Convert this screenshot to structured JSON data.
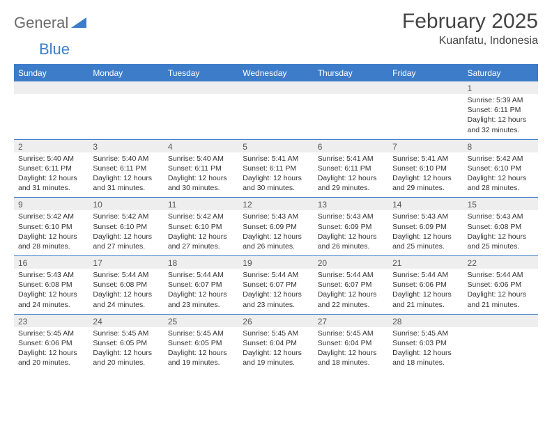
{
  "logo": {
    "word1": "General",
    "word2": "Blue"
  },
  "title": "February 2025",
  "location": "Kuanfatu, Indonesia",
  "header_bg": "#3d7cc9",
  "day_names": [
    "Sunday",
    "Monday",
    "Tuesday",
    "Wednesday",
    "Thursday",
    "Friday",
    "Saturday"
  ],
  "weeks": [
    [
      {
        "n": "",
        "sr": "",
        "ss": "",
        "dl": ""
      },
      {
        "n": "",
        "sr": "",
        "ss": "",
        "dl": ""
      },
      {
        "n": "",
        "sr": "",
        "ss": "",
        "dl": ""
      },
      {
        "n": "",
        "sr": "",
        "ss": "",
        "dl": ""
      },
      {
        "n": "",
        "sr": "",
        "ss": "",
        "dl": ""
      },
      {
        "n": "",
        "sr": "",
        "ss": "",
        "dl": ""
      },
      {
        "n": "1",
        "sr": "Sunrise: 5:39 AM",
        "ss": "Sunset: 6:11 PM",
        "dl": "Daylight: 12 hours and 32 minutes."
      }
    ],
    [
      {
        "n": "2",
        "sr": "Sunrise: 5:40 AM",
        "ss": "Sunset: 6:11 PM",
        "dl": "Daylight: 12 hours and 31 minutes."
      },
      {
        "n": "3",
        "sr": "Sunrise: 5:40 AM",
        "ss": "Sunset: 6:11 PM",
        "dl": "Daylight: 12 hours and 31 minutes."
      },
      {
        "n": "4",
        "sr": "Sunrise: 5:40 AM",
        "ss": "Sunset: 6:11 PM",
        "dl": "Daylight: 12 hours and 30 minutes."
      },
      {
        "n": "5",
        "sr": "Sunrise: 5:41 AM",
        "ss": "Sunset: 6:11 PM",
        "dl": "Daylight: 12 hours and 30 minutes."
      },
      {
        "n": "6",
        "sr": "Sunrise: 5:41 AM",
        "ss": "Sunset: 6:11 PM",
        "dl": "Daylight: 12 hours and 29 minutes."
      },
      {
        "n": "7",
        "sr": "Sunrise: 5:41 AM",
        "ss": "Sunset: 6:10 PM",
        "dl": "Daylight: 12 hours and 29 minutes."
      },
      {
        "n": "8",
        "sr": "Sunrise: 5:42 AM",
        "ss": "Sunset: 6:10 PM",
        "dl": "Daylight: 12 hours and 28 minutes."
      }
    ],
    [
      {
        "n": "9",
        "sr": "Sunrise: 5:42 AM",
        "ss": "Sunset: 6:10 PM",
        "dl": "Daylight: 12 hours and 28 minutes."
      },
      {
        "n": "10",
        "sr": "Sunrise: 5:42 AM",
        "ss": "Sunset: 6:10 PM",
        "dl": "Daylight: 12 hours and 27 minutes."
      },
      {
        "n": "11",
        "sr": "Sunrise: 5:42 AM",
        "ss": "Sunset: 6:10 PM",
        "dl": "Daylight: 12 hours and 27 minutes."
      },
      {
        "n": "12",
        "sr": "Sunrise: 5:43 AM",
        "ss": "Sunset: 6:09 PM",
        "dl": "Daylight: 12 hours and 26 minutes."
      },
      {
        "n": "13",
        "sr": "Sunrise: 5:43 AM",
        "ss": "Sunset: 6:09 PM",
        "dl": "Daylight: 12 hours and 26 minutes."
      },
      {
        "n": "14",
        "sr": "Sunrise: 5:43 AM",
        "ss": "Sunset: 6:09 PM",
        "dl": "Daylight: 12 hours and 25 minutes."
      },
      {
        "n": "15",
        "sr": "Sunrise: 5:43 AM",
        "ss": "Sunset: 6:08 PM",
        "dl": "Daylight: 12 hours and 25 minutes."
      }
    ],
    [
      {
        "n": "16",
        "sr": "Sunrise: 5:43 AM",
        "ss": "Sunset: 6:08 PM",
        "dl": "Daylight: 12 hours and 24 minutes."
      },
      {
        "n": "17",
        "sr": "Sunrise: 5:44 AM",
        "ss": "Sunset: 6:08 PM",
        "dl": "Daylight: 12 hours and 24 minutes."
      },
      {
        "n": "18",
        "sr": "Sunrise: 5:44 AM",
        "ss": "Sunset: 6:07 PM",
        "dl": "Daylight: 12 hours and 23 minutes."
      },
      {
        "n": "19",
        "sr": "Sunrise: 5:44 AM",
        "ss": "Sunset: 6:07 PM",
        "dl": "Daylight: 12 hours and 23 minutes."
      },
      {
        "n": "20",
        "sr": "Sunrise: 5:44 AM",
        "ss": "Sunset: 6:07 PM",
        "dl": "Daylight: 12 hours and 22 minutes."
      },
      {
        "n": "21",
        "sr": "Sunrise: 5:44 AM",
        "ss": "Sunset: 6:06 PM",
        "dl": "Daylight: 12 hours and 21 minutes."
      },
      {
        "n": "22",
        "sr": "Sunrise: 5:44 AM",
        "ss": "Sunset: 6:06 PM",
        "dl": "Daylight: 12 hours and 21 minutes."
      }
    ],
    [
      {
        "n": "23",
        "sr": "Sunrise: 5:45 AM",
        "ss": "Sunset: 6:06 PM",
        "dl": "Daylight: 12 hours and 20 minutes."
      },
      {
        "n": "24",
        "sr": "Sunrise: 5:45 AM",
        "ss": "Sunset: 6:05 PM",
        "dl": "Daylight: 12 hours and 20 minutes."
      },
      {
        "n": "25",
        "sr": "Sunrise: 5:45 AM",
        "ss": "Sunset: 6:05 PM",
        "dl": "Daylight: 12 hours and 19 minutes."
      },
      {
        "n": "26",
        "sr": "Sunrise: 5:45 AM",
        "ss": "Sunset: 6:04 PM",
        "dl": "Daylight: 12 hours and 19 minutes."
      },
      {
        "n": "27",
        "sr": "Sunrise: 5:45 AM",
        "ss": "Sunset: 6:04 PM",
        "dl": "Daylight: 12 hours and 18 minutes."
      },
      {
        "n": "28",
        "sr": "Sunrise: 5:45 AM",
        "ss": "Sunset: 6:03 PM",
        "dl": "Daylight: 12 hours and 18 minutes."
      },
      {
        "n": "",
        "sr": "",
        "ss": "",
        "dl": ""
      }
    ]
  ]
}
